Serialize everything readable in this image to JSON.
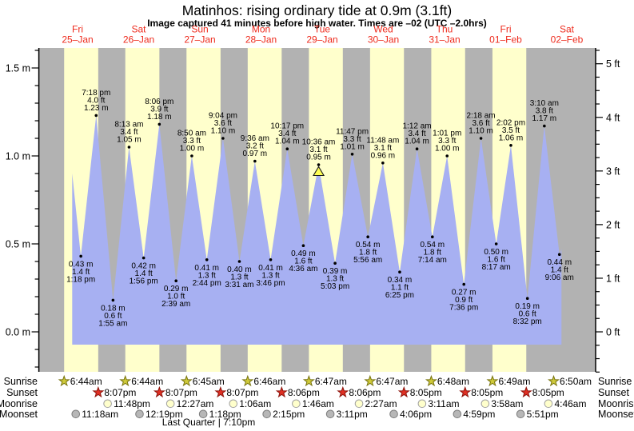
{
  "title": "Matinhos: rising ordinary tide at 0.9m (3.1ft)",
  "subtitle": "Image captured 41 minutes before high water. Times are –02 (UTC –2.0hrs)",
  "colors": {
    "day_band": "#ffffcc",
    "night_band": "#b2b2b2",
    "tide_fill": "#a7b0f2",
    "day_label": "#ee2b1d",
    "annotation_text": "#000000",
    "axis": "#000000",
    "sunrise_star_fill": "#cfca3a",
    "sunrise_star_stroke": "#77730e",
    "sunset_star_fill": "#e03024",
    "sunset_star_stroke": "#8c130b",
    "moonrise_fill": "#ffffcc",
    "moonrise_stroke": "#a0a0a0",
    "moonset_fill": "#b7b7b7",
    "moonset_stroke": "#7d7d7d",
    "now_marker_fill": "#ffff55",
    "now_marker_stroke": "#1a1a1a"
  },
  "chart_data": {
    "type": "area",
    "title": "Matinhos: rising ordinary tide at 0.9m (3.1ft)",
    "subtitle": "Image captured 41 minutes before high water. Times are –02 (UTC –2.0hrs)",
    "axis_range_m": [
      -0.23,
      1.61
    ],
    "y_axis_left": {
      "unit": "m",
      "minor_step": 0.1,
      "major": [
        {
          "value": 1.5,
          "label": "1.5 m"
        },
        {
          "value": 1.0,
          "label": "1.0 m"
        },
        {
          "value": 0.5,
          "label": "0.5 m"
        },
        {
          "value": 0.0,
          "label": "0.0 m"
        }
      ]
    },
    "y_axis_right": {
      "unit": "ft",
      "minor_step": 0.25,
      "m_per_unit": 0.3048,
      "major": [
        {
          "value": 5,
          "label": "5 ft"
        },
        {
          "value": 4,
          "label": "4 ft"
        },
        {
          "value": 3,
          "label": "3 ft"
        },
        {
          "value": 2,
          "label": "2 ft"
        },
        {
          "value": 1,
          "label": "1 ft"
        },
        {
          "value": 0,
          "label": "0 ft"
        }
      ]
    },
    "days": [
      {
        "name": "Fri",
        "date": "25–Jan"
      },
      {
        "name": "Sat",
        "date": "26–Jan"
      },
      {
        "name": "Sun",
        "date": "27–Jan"
      },
      {
        "name": "Mon",
        "date": "28–Jan"
      },
      {
        "name": "Tue",
        "date": "29–Jan"
      },
      {
        "name": "Wed",
        "date": "30–Jan"
      },
      {
        "name": "Thu",
        "date": "31–Jan"
      },
      {
        "name": "Fri",
        "date": "01–Feb"
      },
      {
        "name": "Sat",
        "date": "02–Feb"
      }
    ],
    "curve_start": {
      "day": 0,
      "hour": 9.9,
      "height_m": 0.9
    },
    "curve_end": {
      "day": 8,
      "hour": 9.9,
      "height_m": 0.47
    },
    "tide_events": [
      {
        "kind": "low",
        "day": 0,
        "time": "1:18 pm",
        "ft": "1.4",
        "m": "0.43"
      },
      {
        "kind": "high",
        "day": 0,
        "time": "7:18 pm",
        "ft": "4.0",
        "m": "1.23"
      },
      {
        "kind": "low",
        "day": 1,
        "time": "1:55 am",
        "ft": "0.6",
        "m": "0.18"
      },
      {
        "kind": "high",
        "day": 1,
        "time": "8:13 am",
        "ft": "3.4",
        "m": "1.05"
      },
      {
        "kind": "low",
        "day": 1,
        "time": "1:56 pm",
        "ft": "1.4",
        "m": "0.42"
      },
      {
        "kind": "high",
        "day": 1,
        "time": "8:06 pm",
        "ft": "3.9",
        "m": "1.18"
      },
      {
        "kind": "low",
        "day": 2,
        "time": "2:39 am",
        "ft": "1.0",
        "m": "0.29"
      },
      {
        "kind": "high",
        "day": 2,
        "time": "8:50 am",
        "ft": "3.3",
        "m": "1.00"
      },
      {
        "kind": "low",
        "day": 2,
        "time": "2:44 pm",
        "ft": "1.3",
        "m": "0.41"
      },
      {
        "kind": "high",
        "day": 2,
        "time": "9:04 pm",
        "ft": "3.6",
        "m": "1.10"
      },
      {
        "kind": "low",
        "day": 3,
        "time": "3:31 am",
        "ft": "1.3",
        "m": "0.40"
      },
      {
        "kind": "high",
        "day": 3,
        "time": "9:36 am",
        "ft": "3.2",
        "m": "0.97"
      },
      {
        "kind": "low",
        "day": 3,
        "time": "3:46 pm",
        "ft": "1.3",
        "m": "0.41"
      },
      {
        "kind": "high",
        "day": 3,
        "time": "10:17 pm",
        "ft": "3.4",
        "m": "1.04"
      },
      {
        "kind": "low",
        "day": 4,
        "time": "4:36 am",
        "ft": "1.6",
        "m": "0.49"
      },
      {
        "kind": "high",
        "day": 4,
        "time": "10:36 am",
        "ft": "3.1",
        "m": "0.95",
        "now": true
      },
      {
        "kind": "low",
        "day": 4,
        "time": "5:03 pm",
        "ft": "1.3",
        "m": "0.39"
      },
      {
        "kind": "high",
        "day": 4,
        "time": "11:47 pm",
        "ft": "3.3",
        "m": "1.01"
      },
      {
        "kind": "low",
        "day": 5,
        "time": "5:56 am",
        "ft": "1.8",
        "m": "0.54"
      },
      {
        "kind": "high",
        "day": 5,
        "time": "11:48 am",
        "ft": "3.1",
        "m": "0.96"
      },
      {
        "kind": "low",
        "day": 5,
        "time": "6:25 pm",
        "ft": "1.1",
        "m": "0.34"
      },
      {
        "kind": "high",
        "day": 6,
        "time": "1:12 am",
        "ft": "3.4",
        "m": "1.04"
      },
      {
        "kind": "low",
        "day": 6,
        "time": "7:14 am",
        "ft": "1.8",
        "m": "0.54"
      },
      {
        "kind": "high",
        "day": 6,
        "time": "1:01 pm",
        "ft": "3.3",
        "m": "1.00"
      },
      {
        "kind": "low",
        "day": 6,
        "time": "7:36 pm",
        "ft": "0.9",
        "m": "0.27"
      },
      {
        "kind": "high",
        "day": 7,
        "time": "2:18 am",
        "ft": "3.6",
        "m": "1.10"
      },
      {
        "kind": "low",
        "day": 7,
        "time": "8:17 am",
        "ft": "1.6",
        "m": "0.50"
      },
      {
        "kind": "high",
        "day": 7,
        "time": "2:02 pm",
        "ft": "3.5",
        "m": "1.06"
      },
      {
        "kind": "low",
        "day": 7,
        "time": "8:32 pm",
        "ft": "0.6",
        "m": "0.19"
      },
      {
        "kind": "high",
        "day": 8,
        "time": "3:10 am",
        "ft": "3.8",
        "m": "1.17"
      },
      {
        "kind": "low",
        "day": 8,
        "time": "9:06 am",
        "ft": "1.4",
        "m": "0.44"
      }
    ]
  },
  "astro": {
    "rows": [
      {
        "label": "Sunrise",
        "icon": "sunrise-star",
        "events": [
          {
            "day": 0,
            "time": "6:44am"
          },
          {
            "day": 1,
            "time": "6:44am"
          },
          {
            "day": 2,
            "time": "6:45am"
          },
          {
            "day": 3,
            "time": "6:46am"
          },
          {
            "day": 4,
            "time": "6:47am"
          },
          {
            "day": 5,
            "time": "6:47am"
          },
          {
            "day": 6,
            "time": "6:48am"
          },
          {
            "day": 7,
            "time": "6:49am"
          },
          {
            "day": 8,
            "time": "6:50am"
          }
        ]
      },
      {
        "label": "Sunset",
        "icon": "sunset-star",
        "events": [
          {
            "day": 0,
            "time": "8:07pm"
          },
          {
            "day": 1,
            "time": "8:07pm"
          },
          {
            "day": 2,
            "time": "8:07pm"
          },
          {
            "day": 3,
            "time": "8:06pm"
          },
          {
            "day": 4,
            "time": "8:06pm"
          },
          {
            "day": 5,
            "time": "8:05pm"
          },
          {
            "day": 6,
            "time": "8:05pm"
          },
          {
            "day": 7,
            "time": "8:05pm"
          }
        ]
      },
      {
        "label": "Moonrise",
        "icon": "moonrise-circle",
        "events": [
          {
            "day": 0,
            "time": "11:48pm"
          },
          {
            "day": 2,
            "time": "12:27am"
          },
          {
            "day": 3,
            "time": "1:06am"
          },
          {
            "day": 4,
            "time": "1:46am"
          },
          {
            "day": 5,
            "time": "2:27am"
          },
          {
            "day": 6,
            "time": "3:11am"
          },
          {
            "day": 7,
            "time": "3:58am"
          },
          {
            "day": 8,
            "time": "4:46am"
          }
        ]
      },
      {
        "label": "Moonset",
        "icon": "moonset-circle",
        "events": [
          {
            "day": 0,
            "time": "11:18am"
          },
          {
            "day": 1,
            "time": "12:19pm"
          },
          {
            "day": 2,
            "time": "1:18pm"
          },
          {
            "day": 3,
            "time": "2:15pm"
          },
          {
            "day": 4,
            "time": "3:11pm"
          },
          {
            "day": 5,
            "time": "4:06pm"
          },
          {
            "day": 6,
            "time": "4:59pm"
          },
          {
            "day": 7,
            "time": "5:51pm"
          }
        ]
      }
    ],
    "footer": "Last Quarter | 7:10pm"
  }
}
